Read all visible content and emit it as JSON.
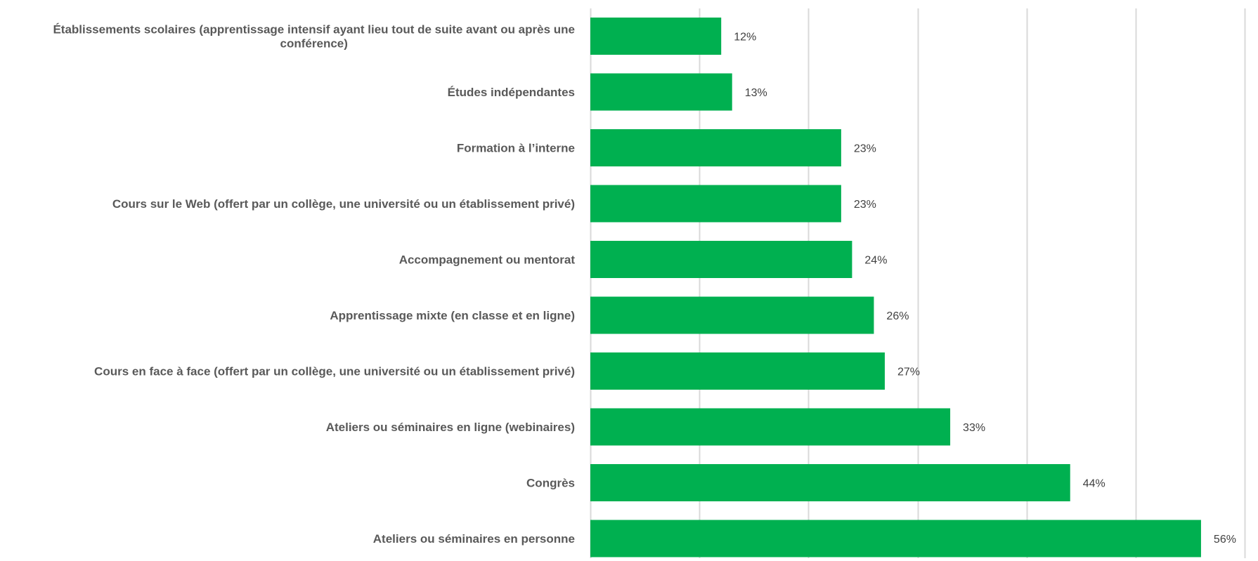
{
  "chart_data": {
    "type": "bar",
    "orientation": "horizontal",
    "categories": [
      "Établissements scolaires (apprentissage intensif ayant lieu tout de suite avant ou après une conférence)",
      "Études indépendantes",
      "Formation à l’interne",
      "Cours sur le Web (offert par un collège, une université ou un établissement privé)",
      "Accompagnement ou mentorat",
      "Apprentissage mixte (en classe et en ligne)",
      "Cours en face à face (offert par un collège, une université ou un établissement privé)",
      "Ateliers ou séminaires en ligne (webinaires)",
      "Congrès",
      "Ateliers ou séminaires en personne"
    ],
    "values": [
      12,
      13,
      23,
      23,
      24,
      26,
      27,
      33,
      44,
      56
    ],
    "data_labels": [
      "12%",
      "13%",
      "23%",
      "23%",
      "24%",
      "26%",
      "27%",
      "33%",
      "44%",
      "56%"
    ],
    "xlim": [
      0,
      60
    ],
    "x_gridline_step": 10,
    "grid": true,
    "bar_color": "#00b050",
    "gridline_color": "#d9d9d9",
    "title": "",
    "xlabel": "",
    "ylabel": ""
  }
}
